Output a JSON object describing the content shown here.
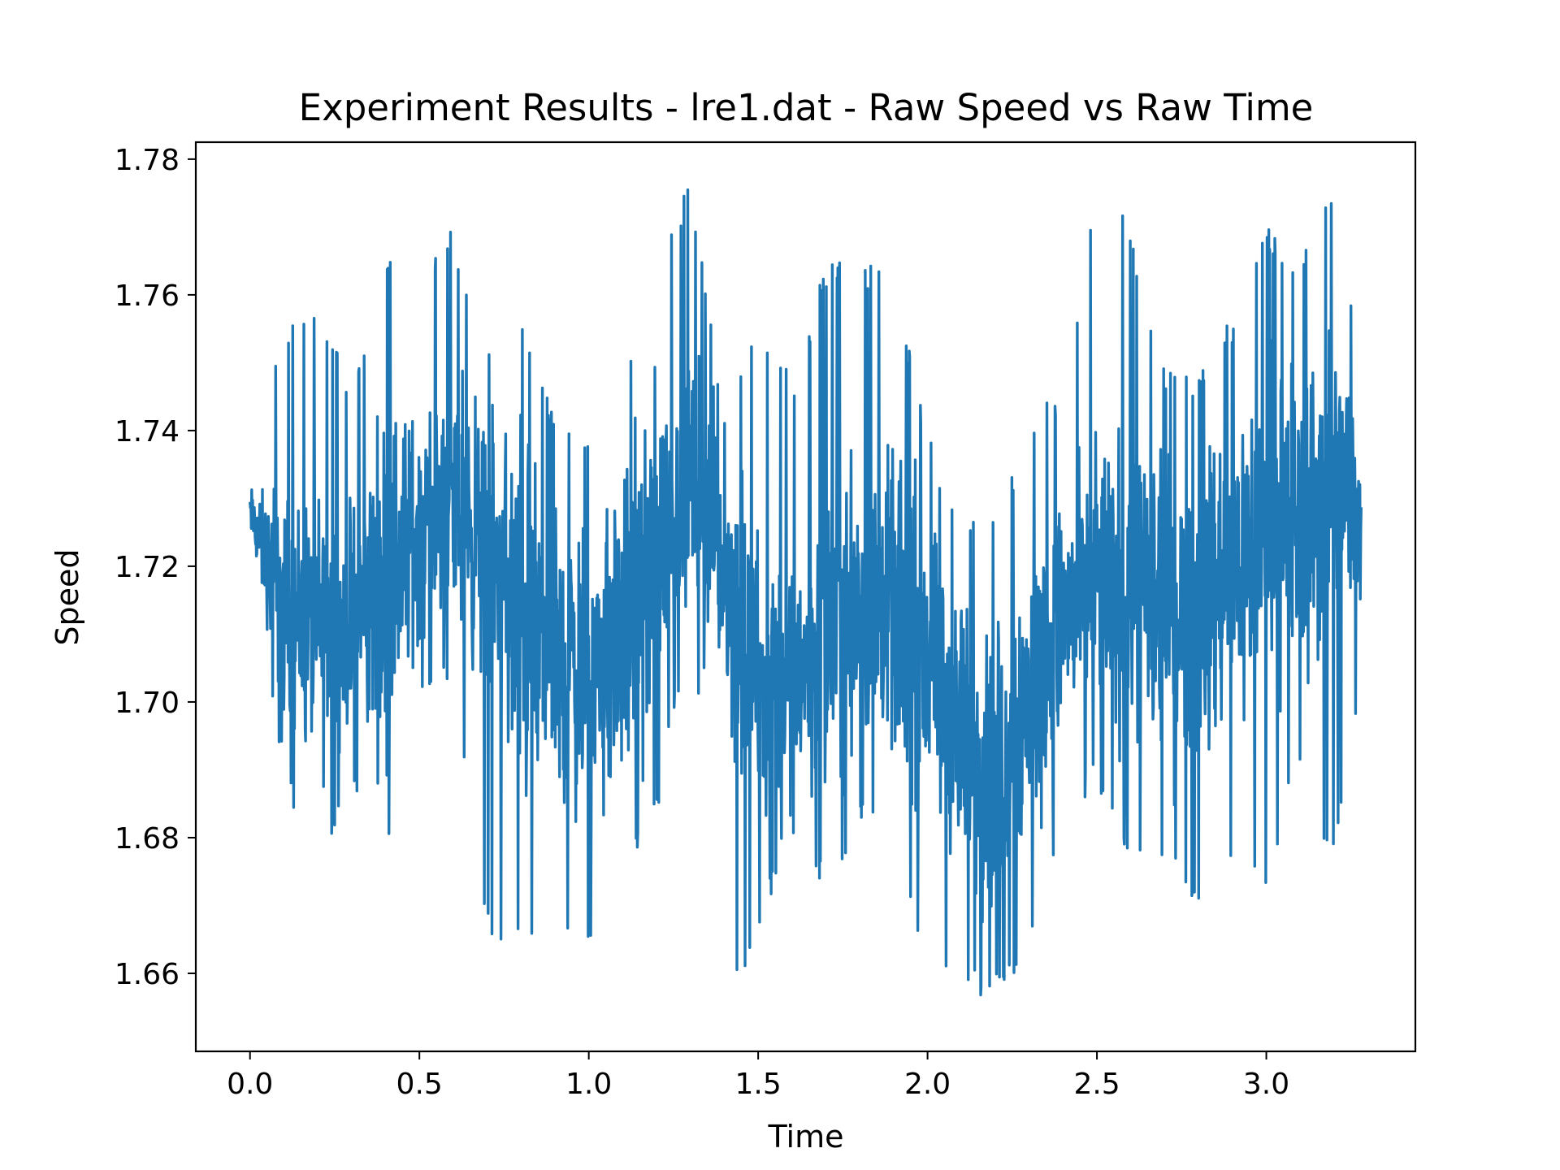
{
  "chart_data": {
    "type": "line",
    "title": "Experiment Results - lre1.dat - Raw Speed vs Raw Time",
    "xlabel": "Time",
    "ylabel": "Speed",
    "xlim": [
      -0.16,
      3.44
    ],
    "ylim": [
      1.6485,
      1.7825
    ],
    "x_ticks": [
      0.0,
      0.5,
      1.0,
      1.5,
      2.0,
      2.5,
      3.0
    ],
    "x_tick_labels": [
      "0.0",
      "0.5",
      "1.0",
      "1.5",
      "2.0",
      "2.5",
      "3.0"
    ],
    "y_ticks": [
      1.66,
      1.68,
      1.7,
      1.72,
      1.74,
      1.76,
      1.78
    ],
    "y_tick_labels": [
      "1.66",
      "1.68",
      "1.70",
      "1.72",
      "1.74",
      "1.76",
      "1.78"
    ],
    "grid": false,
    "line_color": "#1f77b4",
    "series": [
      {
        "x": [
          0.0,
          0.1,
          0.2,
          0.3,
          0.4,
          0.5,
          0.6,
          0.7,
          0.8,
          0.9,
          1.0,
          1.1,
          1.2,
          1.3,
          1.4,
          1.5,
          1.6,
          1.7,
          1.8,
          1.9,
          2.0,
          2.1,
          2.2,
          2.3,
          2.4,
          2.5,
          2.6,
          2.7,
          2.8,
          2.9,
          3.0,
          3.1,
          3.2,
          3.28
        ],
        "y": [
          1.728,
          1.714,
          1.71,
          1.712,
          1.718,
          1.726,
          1.73,
          1.722,
          1.712,
          1.706,
          1.704,
          1.71,
          1.722,
          1.734,
          1.72,
          1.702,
          1.704,
          1.71,
          1.716,
          1.714,
          1.706,
          1.694,
          1.69,
          1.7,
          1.712,
          1.718,
          1.716,
          1.712,
          1.714,
          1.72,
          1.724,
          1.726,
          1.732,
          1.728
        ],
        "y_min": [
          1.722,
          1.688,
          1.675,
          1.686,
          1.675,
          1.699,
          1.702,
          1.665,
          1.665,
          1.663,
          1.665,
          1.674,
          1.683,
          1.711,
          1.654,
          1.665,
          1.681,
          1.671,
          1.681,
          1.68,
          1.658,
          1.657,
          1.656,
          1.662,
          1.682,
          1.688,
          1.674,
          1.677,
          1.668,
          1.675,
          1.673,
          1.69,
          1.675,
          1.701
        ],
        "y_max": [
          1.74,
          1.756,
          1.758,
          1.747,
          1.767,
          1.765,
          1.77,
          1.751,
          1.759,
          1.742,
          1.741,
          1.747,
          1.765,
          1.777,
          1.743,
          1.755,
          1.748,
          1.765,
          1.765,
          1.764,
          1.74,
          1.727,
          1.727,
          1.741,
          1.747,
          1.777,
          1.77,
          1.749,
          1.749,
          1.757,
          1.77,
          1.766,
          1.777,
          1.752
        ]
      }
    ]
  }
}
